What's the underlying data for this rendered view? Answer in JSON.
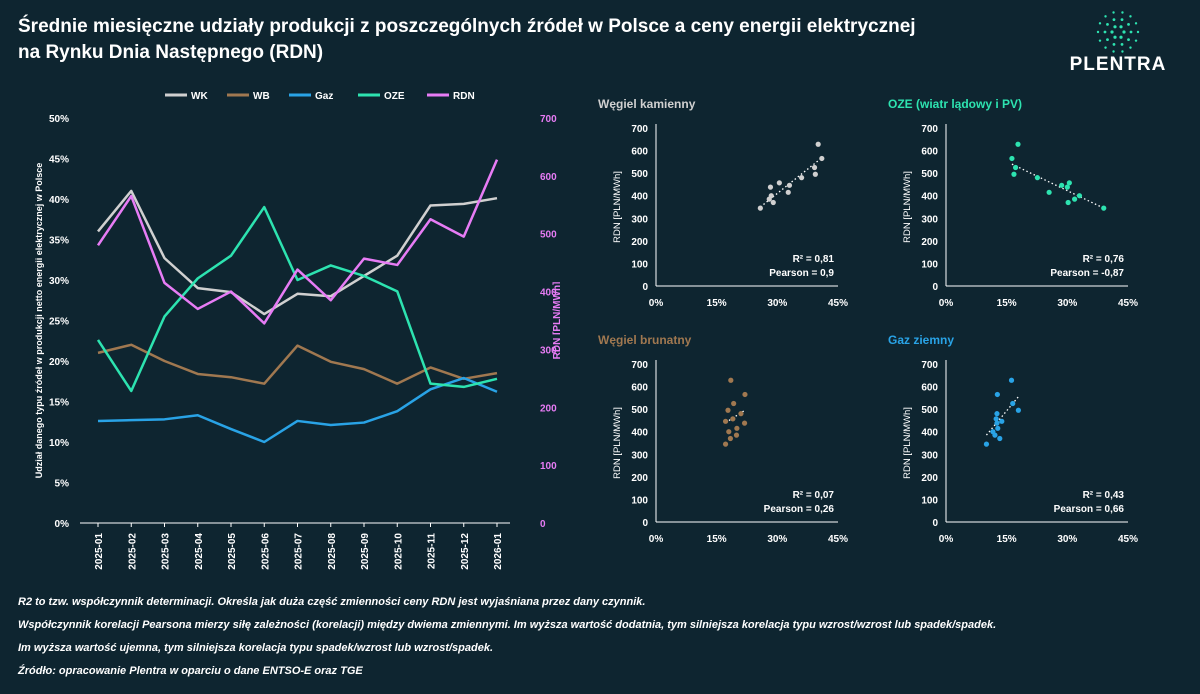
{
  "title_line1": "Średnie miesięczne udziały produkcji z poszczególnych źródeł w Polsce a ceny energii elektrycznej",
  "title_line2": "na Rynku Dnia Następnego (RDN)",
  "logo_text": "PLENTRA",
  "colors": {
    "background": "#0e2530",
    "WK": "#d0d0d0",
    "WB": "#a07850",
    "Gaz": "#29a3e6",
    "OZE": "#2de3b0",
    "RDN": "#e77cf5",
    "logo": "#2de3b0"
  },
  "chart_data": [
    {
      "type": "line",
      "id": "main",
      "categories": [
        "2025-01",
        "2025-02",
        "2025-03",
        "2025-04",
        "2025-05",
        "2025-06",
        "2025-07",
        "2025-08",
        "2025-09",
        "2025-10",
        "2025-11",
        "2025-12",
        "2026-01"
      ],
      "ylabel": "Udział danego typu źródeł w produkcji netto energii elektrycznej w Polsce",
      "y2label": "RDN [PLN/MWh]",
      "ylim": [
        0,
        50
      ],
      "yticks": [
        "0%",
        "5%",
        "10%",
        "15%",
        "20%",
        "25%",
        "30%",
        "35%",
        "40%",
        "45%",
        "50%"
      ],
      "y2lim": [
        0,
        700
      ],
      "y2ticks": [
        "0",
        "100",
        "200",
        "300",
        "400",
        "500",
        "600",
        "700"
      ],
      "legend_position": "top",
      "series": [
        {
          "name": "WK",
          "axis": "left",
          "values": [
            36,
            41,
            32.7,
            29,
            28.5,
            25.8,
            28.3,
            28,
            30.5,
            33,
            39.2,
            39.4,
            40.1
          ]
        },
        {
          "name": "WB",
          "axis": "left",
          "values": [
            21,
            22,
            20,
            18.4,
            18,
            17.2,
            21.9,
            19.9,
            19,
            17.2,
            19.2,
            17.8,
            18.5
          ]
        },
        {
          "name": "Gaz",
          "axis": "left",
          "values": [
            12.6,
            12.7,
            12.8,
            13.3,
            11.6,
            10,
            12.6,
            12.1,
            12.4,
            13.8,
            16.5,
            17.9,
            16.2
          ]
        },
        {
          "name": "OZE",
          "axis": "left",
          "values": [
            22.6,
            16.3,
            25.5,
            30.2,
            33,
            39,
            30,
            31.8,
            30.5,
            28.6,
            17.2,
            16.8,
            17.8
          ]
        },
        {
          "name": "RDN",
          "axis": "right",
          "values": [
            480,
            565,
            415,
            370,
            400,
            345,
            438,
            385,
            457,
            446,
            525,
            495,
            628
          ]
        }
      ]
    },
    {
      "type": "scatter",
      "id": "wk",
      "title": "Węgiel kamienny",
      "color_key": "WK",
      "xlim": [
        0,
        45
      ],
      "xticks": [
        "0%",
        "15%",
        "30%",
        "45%"
      ],
      "ylim": [
        0,
        700
      ],
      "yticks": [
        "0",
        "100",
        "200",
        "300",
        "400",
        "500",
        "600",
        "700"
      ],
      "ylabel": "RDN [PLN/MWh]",
      "x": [
        36,
        41,
        32.7,
        29,
        28.5,
        25.8,
        28.3,
        28,
        30.5,
        33,
        39.2,
        39.4,
        40.1
      ],
      "y": [
        480,
        565,
        415,
        370,
        400,
        345,
        438,
        385,
        457,
        446,
        525,
        495,
        628
      ],
      "trend": [
        [
          25.8,
          350
        ],
        [
          41,
          568
        ]
      ],
      "r2": "R² = 0,81",
      "pearson": "Pearson = 0,9"
    },
    {
      "type": "scatter",
      "id": "oze",
      "title": "OZE (wiatr lądowy i PV)",
      "color_key": "OZE",
      "xlim": [
        0,
        45
      ],
      "xticks": [
        "0%",
        "15%",
        "30%",
        "45%"
      ],
      "ylim": [
        0,
        700
      ],
      "yticks": [
        "0",
        "100",
        "200",
        "300",
        "400",
        "500",
        "600",
        "700"
      ],
      "ylabel": "RDN [PLN/MWh]",
      "x": [
        22.6,
        16.3,
        25.5,
        30.2,
        33,
        39,
        30,
        31.8,
        30.5,
        28.6,
        17.2,
        16.8,
        17.8
      ],
      "y": [
        480,
        565,
        415,
        370,
        400,
        345,
        438,
        385,
        457,
        446,
        525,
        495,
        628
      ],
      "trend": [
        [
          16.3,
          540
        ],
        [
          39,
          345
        ]
      ],
      "r2": "R² = 0,76",
      "pearson": "Pearson = -0,87"
    },
    {
      "type": "scatter",
      "id": "wb",
      "title": "Węgiel brunatny",
      "color_key": "WB",
      "xlim": [
        0,
        45
      ],
      "xticks": [
        "0%",
        "15%",
        "30%",
        "45%"
      ],
      "ylim": [
        0,
        700
      ],
      "yticks": [
        "0",
        "100",
        "200",
        "300",
        "400",
        "500",
        "600",
        "700"
      ],
      "ylabel": "RDN [PLN/MWh]",
      "x": [
        21,
        22,
        20,
        18.4,
        18,
        17.2,
        21.9,
        19.9,
        19,
        17.2,
        19.2,
        17.8,
        18.5
      ],
      "y": [
        480,
        565,
        415,
        370,
        400,
        345,
        438,
        385,
        457,
        446,
        525,
        495,
        628
      ],
      "trend": [
        [
          17.2,
          440
        ],
        [
          22,
          495
        ]
      ],
      "r2": "R² = 0,07",
      "pearson": "Pearson = 0,26"
    },
    {
      "type": "scatter",
      "id": "gaz",
      "title": "Gaz ziemny",
      "color_key": "Gaz",
      "xlim": [
        0,
        45
      ],
      "xticks": [
        "0%",
        "15%",
        "30%",
        "45%"
      ],
      "ylim": [
        0,
        700
      ],
      "yticks": [
        "0",
        "100",
        "200",
        "300",
        "400",
        "500",
        "600",
        "700"
      ],
      "ylabel": "RDN [PLN/MWh]",
      "x": [
        12.6,
        12.7,
        12.8,
        13.3,
        11.6,
        10,
        12.6,
        12.1,
        12.4,
        13.8,
        16.5,
        17.9,
        16.2
      ],
      "y": [
        480,
        565,
        415,
        370,
        400,
        345,
        438,
        385,
        457,
        446,
        525,
        495,
        628
      ],
      "trend": [
        [
          10,
          385
        ],
        [
          17.9,
          555
        ]
      ],
      "r2": "R² = 0,43",
      "pearson": "Pearson = 0,66"
    }
  ],
  "notes": [
    "R2 to tzw. współczynnik determinacji. Określa jak duża część zmienności ceny RDN jest wyjaśniana przez dany czynnik.",
    "Współczynnik korelacji Pearsona mierzy siłę zależności (korelacji) między dwiema zmiennymi. Im wyższa wartość dodatnia, tym silniejsza korelacja typu wzrost/wzrost lub spadek/spadek.",
    "Im wyższa wartość ujemna, tym silniejsza korelacja typu spadek/wzrost lub wzrost/spadek.",
    "Źródło: opracowanie Plentra w oparciu o dane ENTSO-E oraz TGE"
  ]
}
